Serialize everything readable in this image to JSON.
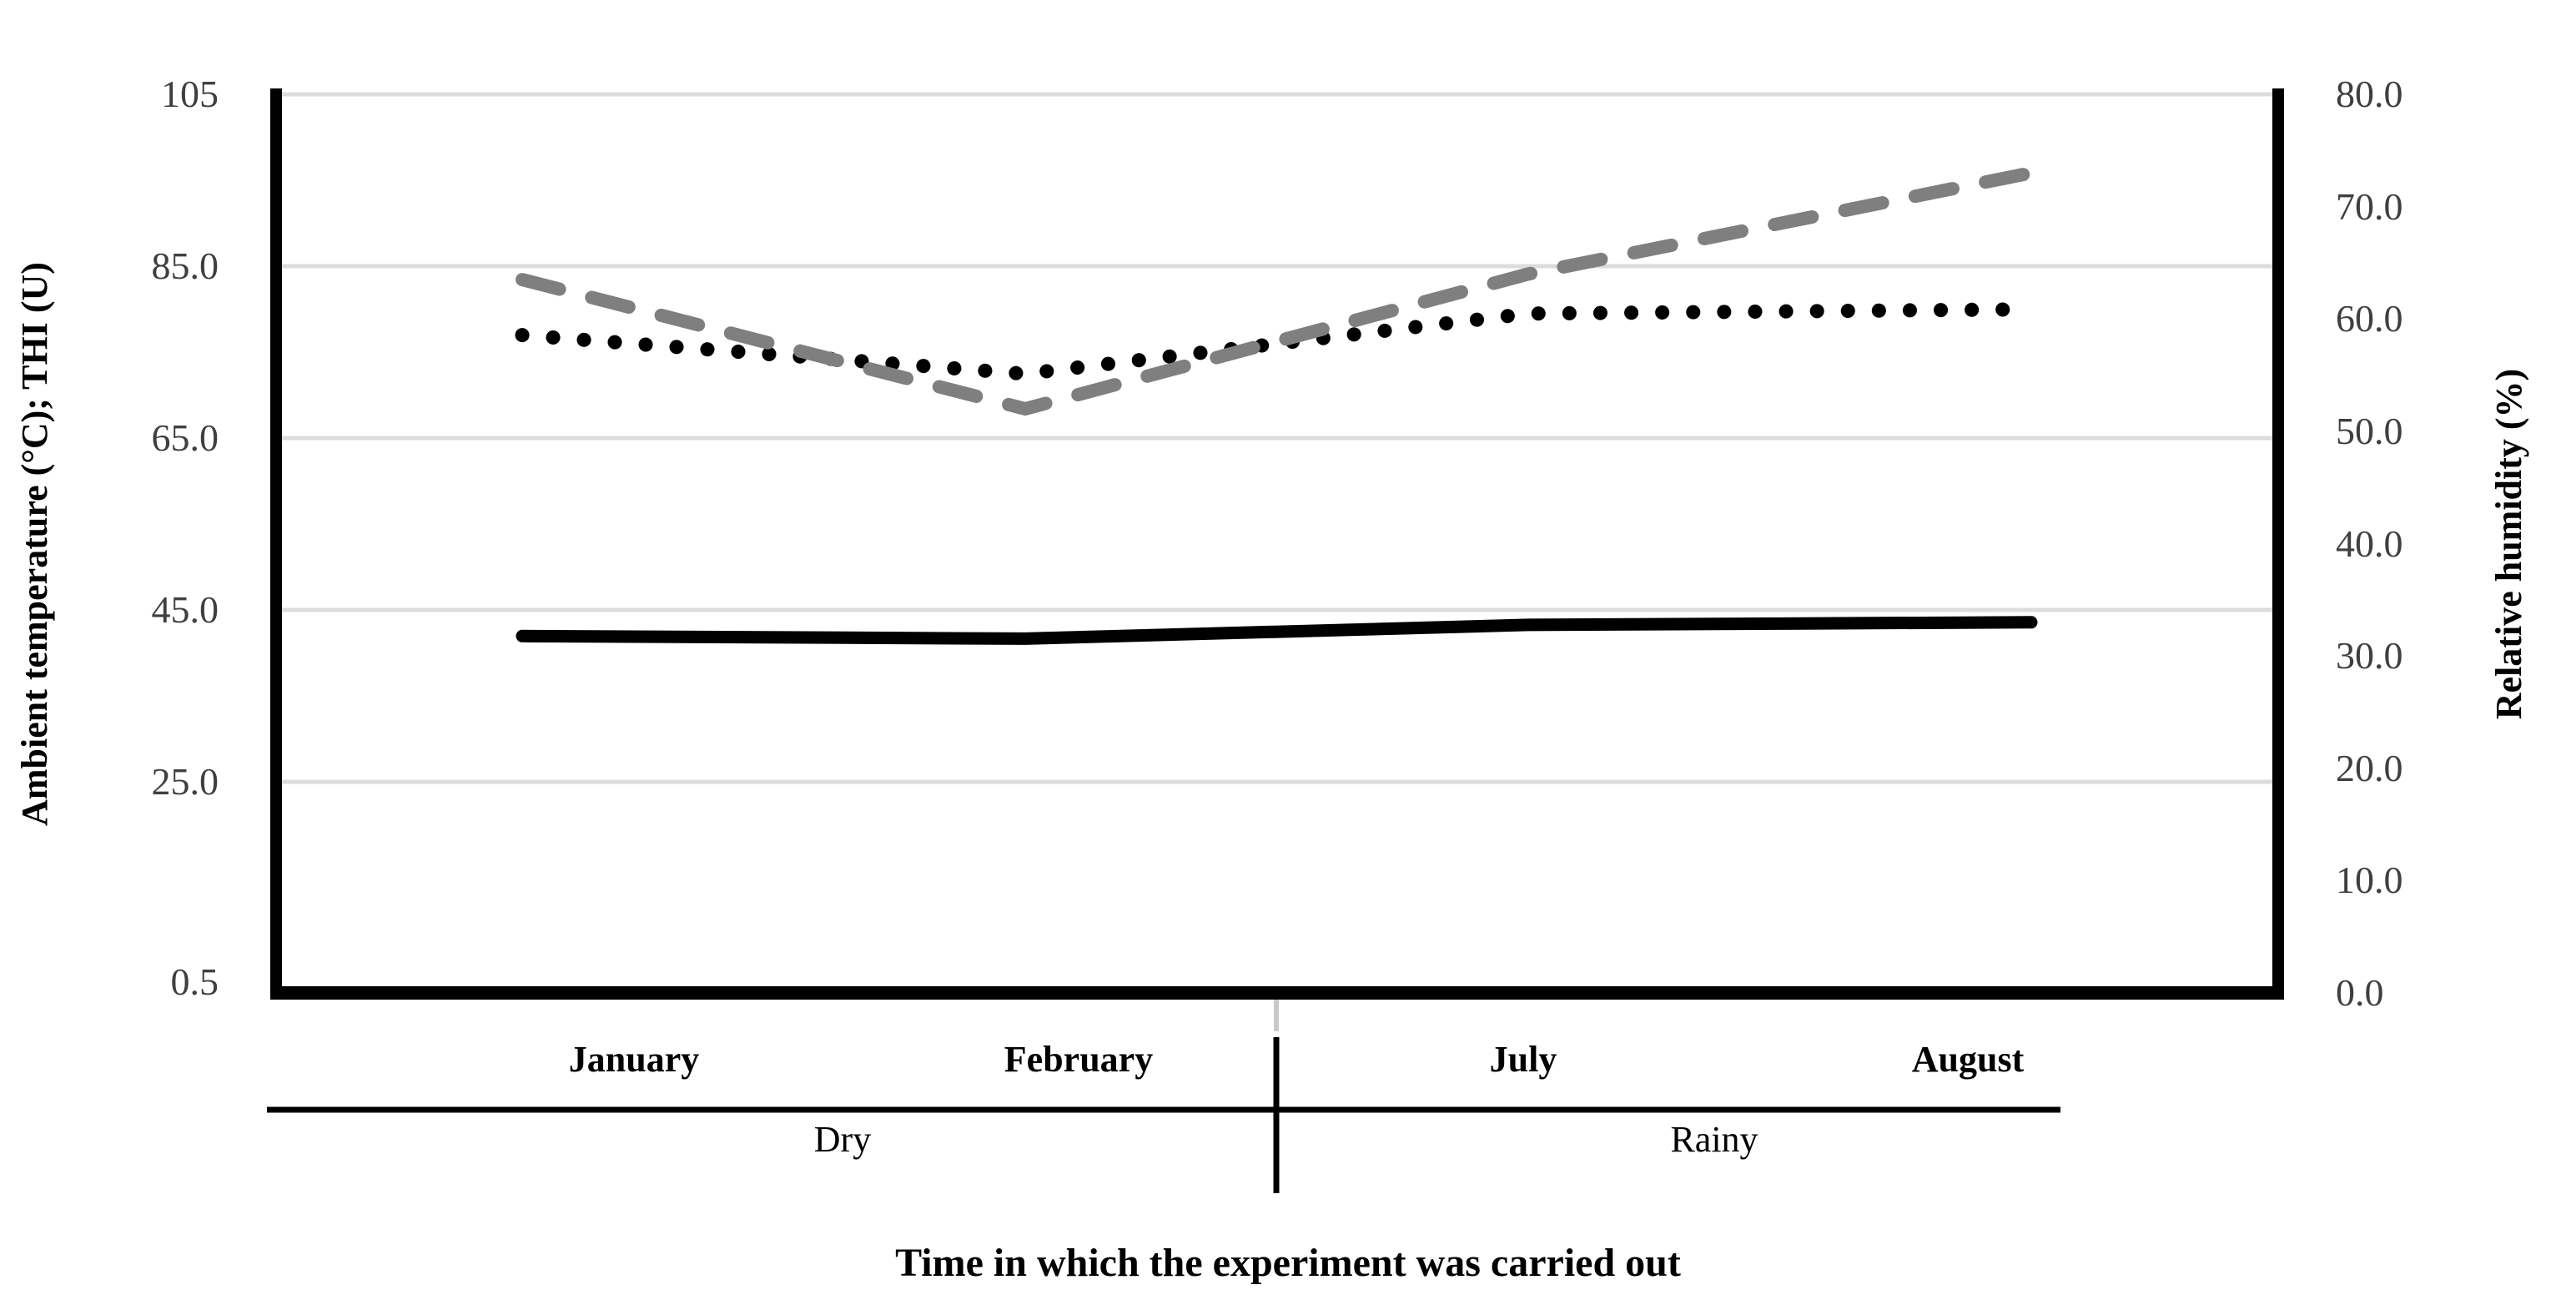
{
  "figure": {
    "left_axis": {
      "title": "Ambient temperature (°C); THI (U)",
      "ticks": [
        "105",
        "85.0",
        "65.0",
        "45.0",
        "25.0",
        "0.5"
      ]
    },
    "right_axis": {
      "title": "Relative humidity (%)",
      "ticks": [
        "80.0",
        "70.0",
        "60.0",
        "50.0",
        "40.0",
        "30.0",
        "20.0",
        "10.0",
        "0.0"
      ]
    },
    "x_axis": {
      "months": [
        "January",
        "February",
        "July",
        "August"
      ],
      "seasons": [
        "Dry",
        "Rainy"
      ],
      "title": "Time in which the experiment was carried out"
    },
    "colors": {
      "solid_line": "#000000",
      "dotted_line": "#000000",
      "dashed_line": "#7f7f7f",
      "gridline": "#dcdcdc"
    }
  },
  "chart_data": {
    "type": "line",
    "categories": [
      "January",
      "February",
      "July",
      "August"
    ],
    "series": [
      {
        "name": "Ambient temperature (°C)",
        "axis": "left",
        "style": "solid-black",
        "values": [
          42.0,
          41.7,
          43.3,
          43.6
        ]
      },
      {
        "name": "THI (U)",
        "axis": "left",
        "style": "dotted-black",
        "values": [
          77.0,
          72.5,
          79.5,
          80.0
        ]
      },
      {
        "name": "Relative humidity (%)",
        "axis": "right",
        "style": "dashed-gray",
        "values": [
          63.5,
          52.0,
          64.0,
          73.0
        ]
      }
    ],
    "left_axis_range": [
      0.5,
      105
    ],
    "right_axis_range": [
      0.0,
      80.0
    ],
    "left_axis_label": "Ambient temperature (°C); THI (U)",
    "right_axis_label": "Relative humidity (%)",
    "xlabel": "Time in which the experiment was carried out",
    "season_groups": [
      {
        "label": "Dry",
        "months": [
          "January",
          "February"
        ]
      },
      {
        "label": "Rainy",
        "months": [
          "July",
          "August"
        ]
      }
    ],
    "grid": true,
    "legend": false
  }
}
